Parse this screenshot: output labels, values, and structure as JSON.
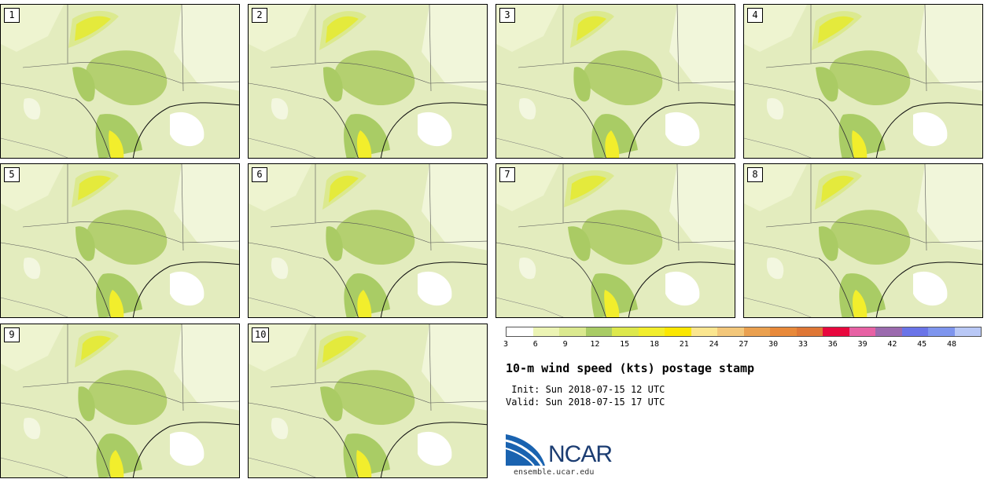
{
  "members": [
    "1",
    "2",
    "3",
    "4",
    "5",
    "6",
    "7",
    "8",
    "9",
    "10"
  ],
  "colorbar": {
    "colors": [
      "#ffffff",
      "#ecf4b4",
      "#dbe98f",
      "#a9cc65",
      "#dde84c",
      "#f2ee2c",
      "#fbe700",
      "#fbe68f",
      "#f3c77a",
      "#eaa04f",
      "#e8893a",
      "#df7736",
      "#e8083e",
      "#e761a4",
      "#9b6aae",
      "#6a74e8",
      "#7e95ee",
      "#b9c8f6"
    ],
    "tick_labels": [
      "3",
      "6",
      "9",
      "12",
      "15",
      "18",
      "21",
      "24",
      "27",
      "30",
      "33",
      "36",
      "39",
      "42",
      "45",
      "48"
    ]
  },
  "title": "10-m wind speed (kts) postage stamp",
  "init_line": " Init: Sun 2018-07-15 12 UTC",
  "valid_line": "Valid: Sun 2018-07-15 17 UTC",
  "logo_text": "NCAR",
  "site": "ensemble.ucar.edu"
}
